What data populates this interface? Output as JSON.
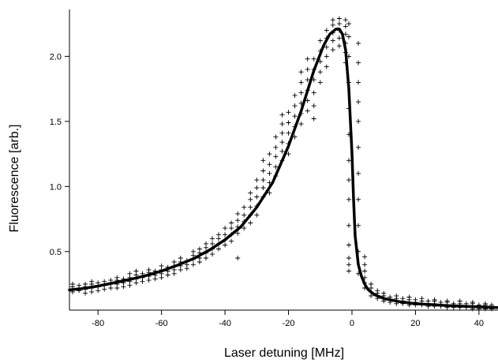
{
  "chart_data": {
    "type": "scatter",
    "title": "",
    "xlabel": "Laser detuning  [MHz]",
    "ylabel": "Fluorescence  [arb.]",
    "xlim": [
      -89,
      46
    ],
    "ylim": [
      0.05,
      2.36
    ],
    "xticks": [
      -80,
      -60,
      -40,
      -20,
      0,
      20,
      40
    ],
    "xtick_labels": [
      "-80",
      "-60",
      "-40",
      "-20",
      "0",
      "20",
      "40"
    ],
    "yticks": [
      0.5,
      1.0,
      1.5,
      2.0
    ],
    "ytick_labels": [
      "0.5",
      "1.0",
      "1.5",
      "2.0"
    ],
    "grid": false,
    "legend": "none",
    "series": [
      {
        "kind": "markers",
        "marker": "plus",
        "columns": [
          {
            "x": -88,
            "y": [
              0.19,
              0.21,
              0.23,
              0.25
            ]
          },
          {
            "x": -86,
            "y": [
              0.2,
              0.22,
              0.24
            ]
          },
          {
            "x": -84,
            "y": [
              0.18,
              0.21,
              0.23,
              0.25
            ]
          },
          {
            "x": -82,
            "y": [
              0.19,
              0.22,
              0.25,
              0.27
            ]
          },
          {
            "x": -80,
            "y": [
              0.2,
              0.23,
              0.26
            ]
          },
          {
            "x": -78,
            "y": [
              0.21,
              0.24,
              0.27
            ]
          },
          {
            "x": -76,
            "y": [
              0.22,
              0.25,
              0.28
            ]
          },
          {
            "x": -74,
            "y": [
              0.22,
              0.25,
              0.28,
              0.3
            ]
          },
          {
            "x": -72,
            "y": [
              0.23,
              0.26,
              0.29
            ]
          },
          {
            "x": -70,
            "y": [
              0.24,
              0.27,
              0.3,
              0.33
            ]
          },
          {
            "x": -68,
            "y": [
              0.26,
              0.29,
              0.32,
              0.35
            ]
          },
          {
            "x": -66,
            "y": [
              0.27,
              0.3,
              0.33
            ]
          },
          {
            "x": -64,
            "y": [
              0.28,
              0.31,
              0.34,
              0.36
            ]
          },
          {
            "x": -62,
            "y": [
              0.29,
              0.32,
              0.35
            ]
          },
          {
            "x": -60,
            "y": [
              0.3,
              0.33,
              0.36,
              0.39
            ]
          },
          {
            "x": -58,
            "y": [
              0.32,
              0.35,
              0.38
            ]
          },
          {
            "x": -56,
            "y": [
              0.33,
              0.36,
              0.39,
              0.42
            ]
          },
          {
            "x": -54,
            "y": [
              0.36,
              0.39,
              0.42,
              0.45
            ]
          },
          {
            "x": -52,
            "y": [
              0.37,
              0.4,
              0.43
            ]
          },
          {
            "x": -50,
            "y": [
              0.4,
              0.44,
              0.47,
              0.5
            ]
          },
          {
            "x": -48,
            "y": [
              0.42,
              0.45,
              0.49,
              0.52
            ]
          },
          {
            "x": -46,
            "y": [
              0.45,
              0.49,
              0.53,
              0.56
            ]
          },
          {
            "x": -44,
            "y": [
              0.48,
              0.52,
              0.56,
              0.6
            ]
          },
          {
            "x": -42,
            "y": [
              0.52,
              0.56,
              0.6,
              0.63
            ]
          },
          {
            "x": -40,
            "y": [
              0.55,
              0.59,
              0.63,
              0.68
            ]
          },
          {
            "x": -38,
            "y": [
              0.58,
              0.63,
              0.68,
              0.72
            ]
          },
          {
            "x": -36,
            "y": [
              0.45,
              0.64,
              0.69,
              0.74,
              0.79
            ]
          },
          {
            "x": -34,
            "y": [
              0.68,
              0.73,
              0.78,
              0.84
            ]
          },
          {
            "x": -32,
            "y": [
              0.72,
              0.78,
              0.84,
              0.9,
              0.95
            ]
          },
          {
            "x": -30,
            "y": [
              0.78,
              0.85,
              0.92,
              0.99,
              1.05
            ]
          },
          {
            "x": -28,
            "y": [
              0.92,
              0.99,
              1.05,
              1.12,
              1.2
            ]
          },
          {
            "x": -26,
            "y": [
              0.95,
              1.03,
              1.1,
              1.17,
              1.25
            ]
          },
          {
            "x": -24,
            "y": [
              1.08,
              1.15,
              1.23,
              1.3,
              1.38
            ]
          },
          {
            "x": -22,
            "y": [
              1.2,
              1.27,
              1.34,
              1.41,
              1.48,
              1.55
            ]
          },
          {
            "x": -20,
            "y": [
              1.25,
              1.33,
              1.41,
              1.49,
              1.57
            ]
          },
          {
            "x": -18,
            "y": [
              1.38,
              1.46,
              1.54,
              1.62,
              1.7
            ]
          },
          {
            "x": -16,
            "y": [
              1.48,
              1.56,
              1.64,
              1.72,
              1.8,
              1.88
            ]
          },
          {
            "x": -14,
            "y": [
              1.58,
              1.66,
              1.74,
              1.82,
              1.9,
              1.98
            ]
          },
          {
            "x": -12,
            "y": [
              1.52,
              1.62,
              1.72,
              1.82,
              1.9,
              1.98
            ]
          },
          {
            "x": -10,
            "y": [
              1.8,
              1.88,
              1.96,
              2.04,
              2.12
            ]
          },
          {
            "x": -8,
            "y": [
              1.92,
              2.0,
              2.07,
              2.14,
              2.2
            ]
          },
          {
            "x": -6,
            "y": [
              2.05,
              2.12,
              2.18,
              2.24,
              2.28
            ]
          },
          {
            "x": -4,
            "y": [
              2.08,
              2.14,
              2.2,
              2.25,
              2.29
            ]
          },
          {
            "x": -2,
            "y": [
              1.95,
              2.03,
              2.1,
              2.17,
              2.23,
              2.28
            ]
          },
          {
            "x": -1,
            "y": [
              0.35,
              0.4,
              0.45,
              0.55,
              0.7,
              0.9,
              1.05,
              1.2,
              1.4,
              1.6,
              1.8,
              2.0,
              2.15,
              2.25
            ]
          },
          {
            "x": 2,
            "y": [
              0.33,
              0.5,
              0.7,
              0.9,
              1.1,
              1.3,
              1.5,
              1.65,
              1.8,
              1.95,
              2.1
            ]
          },
          {
            "x": 4,
            "y": [
              0.22,
              0.26,
              0.3,
              0.35,
              0.4,
              0.46
            ]
          },
          {
            "x": 6,
            "y": [
              0.16,
              0.19,
              0.22,
              0.25
            ]
          },
          {
            "x": 8,
            "y": [
              0.14,
              0.16,
              0.18,
              0.2
            ]
          },
          {
            "x": 10,
            "y": [
              0.12,
              0.14,
              0.16,
              0.18
            ]
          },
          {
            "x": 12,
            "y": [
              0.11,
              0.13,
              0.15
            ]
          },
          {
            "x": 14,
            "y": [
              0.1,
              0.12,
              0.14,
              0.16
            ]
          },
          {
            "x": 16,
            "y": [
              0.1,
              0.12,
              0.14
            ]
          },
          {
            "x": 18,
            "y": [
              0.09,
              0.11,
              0.13,
              0.15
            ]
          },
          {
            "x": 20,
            "y": [
              0.09,
              0.11,
              0.13
            ]
          },
          {
            "x": 22,
            "y": [
              0.09,
              0.1,
              0.12,
              0.14
            ]
          },
          {
            "x": 24,
            "y": [
              0.08,
              0.1,
              0.12
            ]
          },
          {
            "x": 26,
            "y": [
              0.08,
              0.1,
              0.12,
              0.13
            ]
          },
          {
            "x": 28,
            "y": [
              0.08,
              0.09,
              0.11
            ]
          },
          {
            "x": 30,
            "y": [
              0.07,
              0.09,
              0.11,
              0.12
            ]
          },
          {
            "x": 32,
            "y": [
              0.07,
              0.09,
              0.1
            ]
          },
          {
            "x": 34,
            "y": [
              0.07,
              0.08,
              0.1,
              0.12
            ]
          },
          {
            "x": 36,
            "y": [
              0.07,
              0.08,
              0.1
            ]
          },
          {
            "x": 38,
            "y": [
              0.06,
              0.08,
              0.1,
              0.11
            ]
          },
          {
            "x": 40,
            "y": [
              0.06,
              0.08,
              0.09
            ]
          },
          {
            "x": 42,
            "y": [
              0.06,
              0.07,
              0.09,
              0.1
            ]
          },
          {
            "x": 44,
            "y": [
              0.06,
              0.07,
              0.09
            ]
          }
        ]
      },
      {
        "kind": "line",
        "x": [
          -89,
          -85,
          -80,
          -75,
          -70,
          -65,
          -60,
          -55,
          -50,
          -45,
          -40,
          -35,
          -30,
          -25,
          -20,
          -16,
          -12,
          -9,
          -7,
          -5,
          -4,
          -3,
          -2,
          -1,
          0,
          0.5,
          1,
          2,
          3,
          4,
          5,
          7,
          10,
          15,
          20,
          30,
          40,
          46
        ],
        "y": [
          0.205,
          0.215,
          0.235,
          0.26,
          0.285,
          0.315,
          0.35,
          0.395,
          0.445,
          0.51,
          0.59,
          0.69,
          0.84,
          1.03,
          1.31,
          1.58,
          1.89,
          2.08,
          2.17,
          2.21,
          2.21,
          2.17,
          2.05,
          1.75,
          1.25,
          0.9,
          0.62,
          0.4,
          0.31,
          0.25,
          0.21,
          0.17,
          0.14,
          0.115,
          0.1,
          0.085,
          0.075,
          0.07
        ]
      }
    ]
  }
}
